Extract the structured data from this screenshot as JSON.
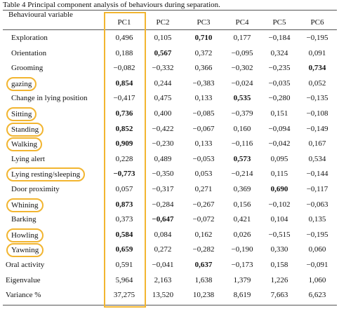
{
  "caption": "Table 4 Principal component analysis of behaviours during separation.",
  "header": {
    "variable": "Behavioural variable",
    "columns": [
      "PC1",
      "PC2",
      "PC3",
      "PC4",
      "PC5",
      "PC6"
    ]
  },
  "rows": [
    {
      "label": "Exploration",
      "values": [
        "0,496",
        "0,105",
        "0,710",
        "0,177",
        "−0,184",
        "−0,195"
      ],
      "bold": [
        2
      ],
      "highlight": false
    },
    {
      "label": "Orientation",
      "values": [
        "0,188",
        "0,567",
        "0,372",
        "−0,095",
        "0,324",
        "0,091"
      ],
      "bold": [
        1
      ],
      "highlight": false
    },
    {
      "label": "Grooming",
      "values": [
        "−0,082",
        "−0,332",
        "0,366",
        "−0,302",
        "−0,235",
        "0,734"
      ],
      "bold": [
        5
      ],
      "highlight": false
    },
    {
      "label": "gazing",
      "values": [
        "0,854",
        "0,244",
        "−0,383",
        "−0,024",
        "−0,035",
        "0,052"
      ],
      "bold": [
        0
      ],
      "highlight": true
    },
    {
      "label": "Change in lying position",
      "values": [
        "−0,417",
        "0,475",
        "0,133",
        "0,535",
        "−0,280",
        "−0,135"
      ],
      "bold": [
        3
      ],
      "highlight": false
    },
    {
      "label": "Sitting",
      "values": [
        "0,736",
        "0,400",
        "−0,085",
        "−0,379",
        "0,151",
        "−0,108"
      ],
      "bold": [
        0
      ],
      "highlight": true
    },
    {
      "label": "Standing",
      "values": [
        "0,852",
        "−0,422",
        "−0,067",
        "0,160",
        "−0,094",
        "−0,149"
      ],
      "bold": [
        0
      ],
      "highlight": true
    },
    {
      "label": "Walking",
      "values": [
        "0,909",
        "−0,230",
        "0,133",
        "−0,116",
        "−0,042",
        "0,167"
      ],
      "bold": [
        0
      ],
      "highlight": true
    },
    {
      "label": "Lying alert",
      "values": [
        "0,228",
        "0,489",
        "−0,053",
        "0,573",
        "0,095",
        "0,534"
      ],
      "bold": [
        3
      ],
      "highlight": false
    },
    {
      "label": "Lying resting/sleeping",
      "values": [
        "−0,773",
        "−0,350",
        "0,053",
        "−0,214",
        "0,115",
        "−0,144"
      ],
      "bold": [
        0
      ],
      "highlight": true
    },
    {
      "label": "Door proximity",
      "values": [
        "0,057",
        "−0,317",
        "0,271",
        "0,369",
        "0,690",
        "−0,117"
      ],
      "bold": [
        4
      ],
      "highlight": false
    },
    {
      "label": "Whining",
      "values": [
        "0,873",
        "−0,284",
        "−0,267",
        "0,156",
        "−0,102",
        "−0,063"
      ],
      "bold": [
        0
      ],
      "highlight": true
    },
    {
      "label": "Barking",
      "values": [
        "0,373",
        "−0,647",
        "−0,072",
        "0,421",
        "0,104",
        "0,135"
      ],
      "bold": [
        1
      ],
      "highlight": false
    },
    {
      "label": "Howling",
      "values": [
        "0,584",
        "0,084",
        "0,162",
        "0,026",
        "−0,515",
        "−0,195"
      ],
      "bold": [
        0
      ],
      "highlight": true
    },
    {
      "label": "Yawning",
      "values": [
        "0,659",
        "0,272",
        "−0,282",
        "−0,190",
        "0,330",
        "0,060"
      ],
      "bold": [
        0
      ],
      "highlight": true
    },
    {
      "label": "Oral activity",
      "values": [
        "0,591",
        "−0,041",
        "0,637",
        "−0,173",
        "0,158",
        "−0,091"
      ],
      "bold": [
        2
      ],
      "highlight": false
    },
    {
      "label": "Eigenvalue",
      "values": [
        "5,964",
        "2,163",
        "1,638",
        "1,379",
        "1,226",
        "1,060"
      ],
      "bold": [],
      "highlight": false
    },
    {
      "label": "Variance %",
      "values": [
        "37,275",
        "13,520",
        "10,238",
        "8,619",
        "7,663",
        "6,623"
      ],
      "bold": [],
      "highlight": false
    }
  ]
}
